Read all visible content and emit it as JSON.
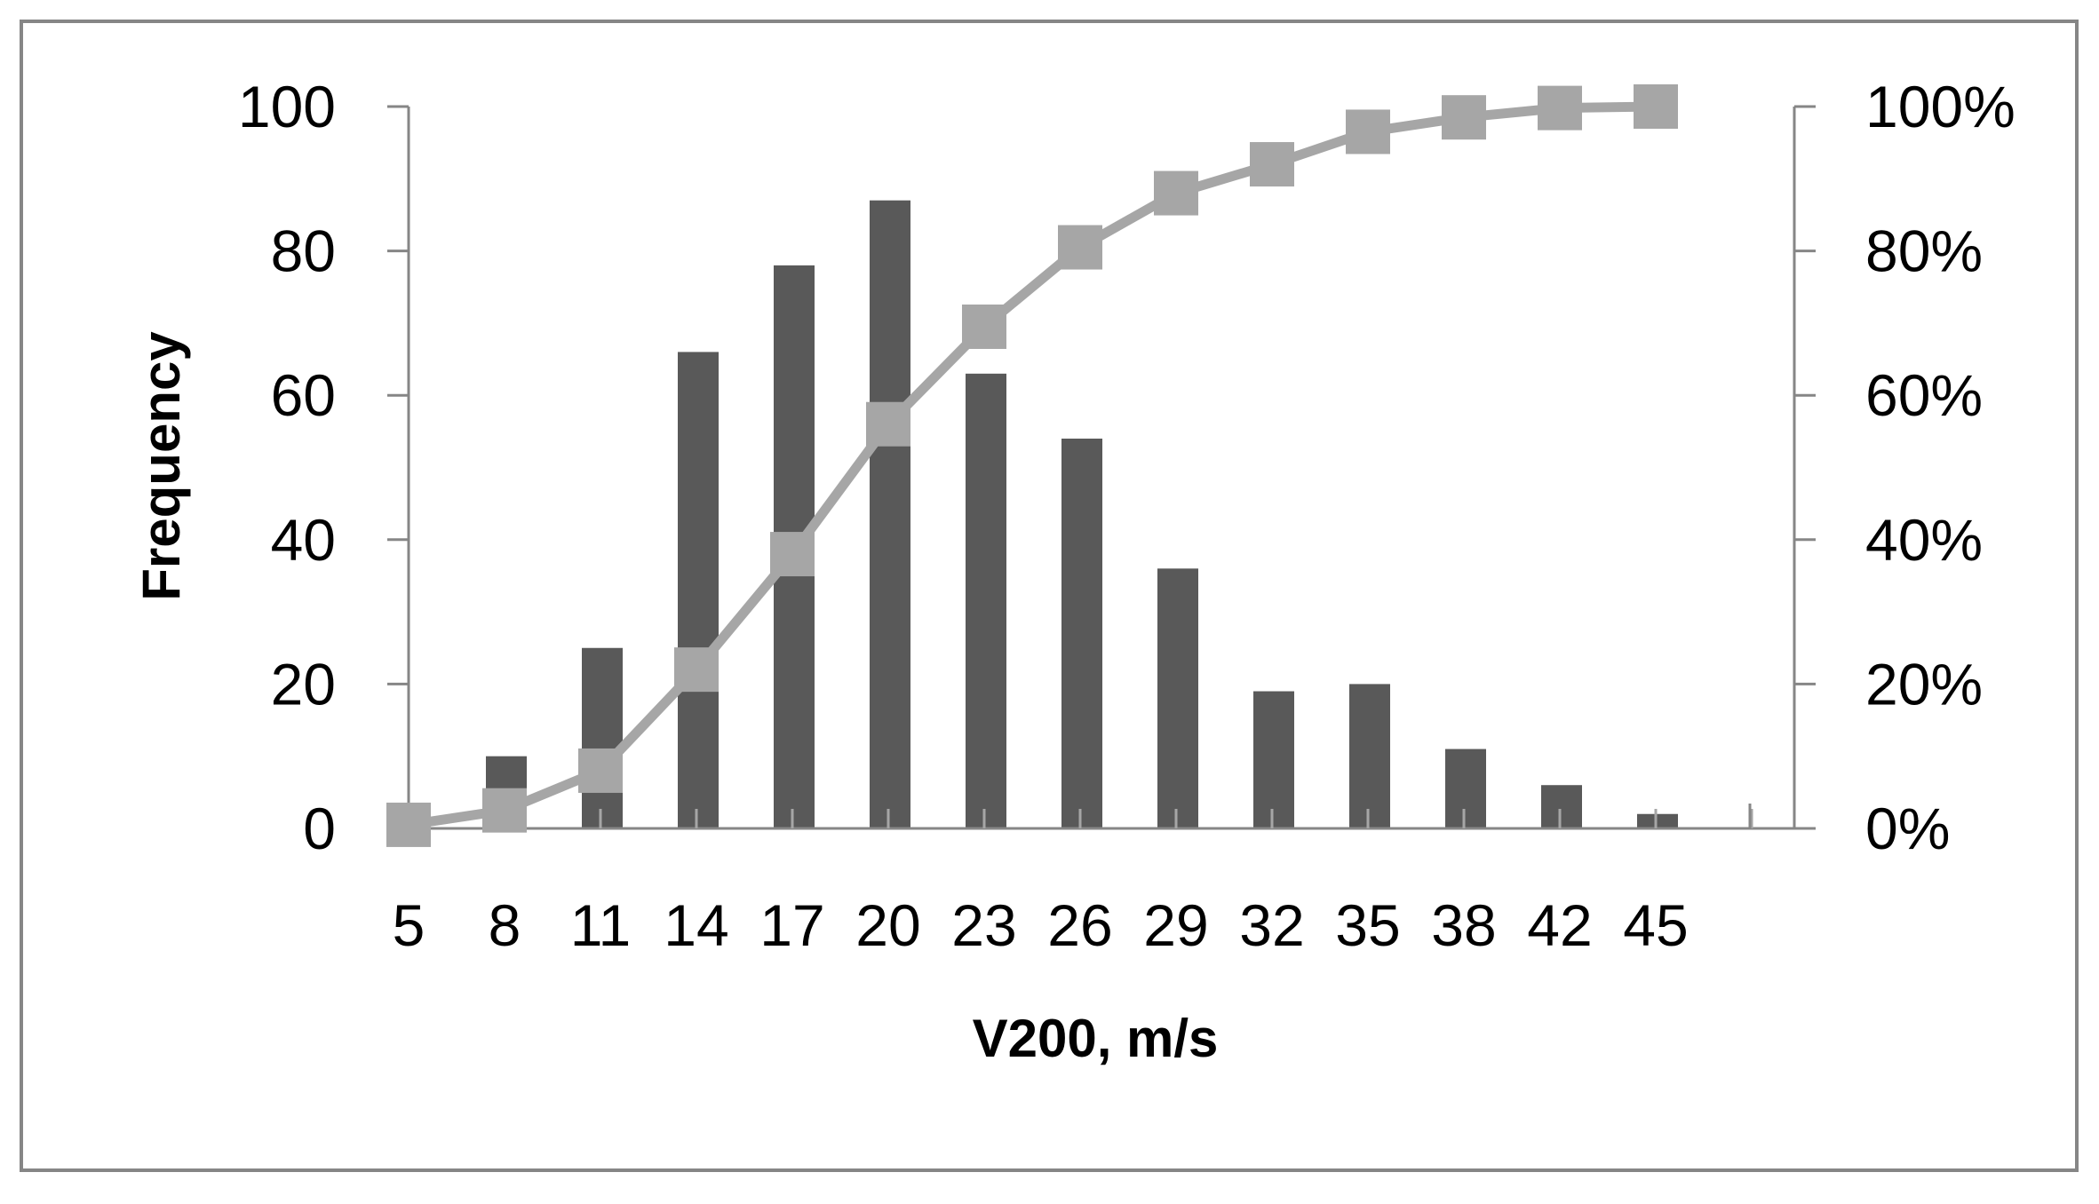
{
  "chart_data": {
    "type": "bar",
    "title": "",
    "xlabel": "V200, m/s",
    "ylabel": "Frequency",
    "y2label": "",
    "categories": [
      "5",
      "8",
      "11",
      "14",
      "17",
      "20",
      "23",
      "26",
      "29",
      "32",
      "35",
      "38",
      "42",
      "45"
    ],
    "ylim": [
      0,
      100
    ],
    "yticks": [
      0,
      20,
      40,
      60,
      80,
      100
    ],
    "y2lim": [
      0,
      100
    ],
    "y2ticks": [
      "0%",
      "20%",
      "40%",
      "60%",
      "80%",
      "100%"
    ],
    "grid": false,
    "legend": "none",
    "series": [
      {
        "type": "bar",
        "axis": "left",
        "color": "#595959",
        "values": [
          0,
          10,
          25,
          66,
          78,
          87,
          63,
          54,
          36,
          19,
          20,
          11,
          6,
          2
        ]
      },
      {
        "type": "line",
        "axis": "right",
        "color": "#a6a6a6",
        "marker": "square",
        "values": [
          0.5,
          2.5,
          8,
          22,
          38,
          56,
          69.5,
          80.5,
          88,
          92,
          96.5,
          98.5,
          99.8,
          100
        ]
      }
    ]
  }
}
